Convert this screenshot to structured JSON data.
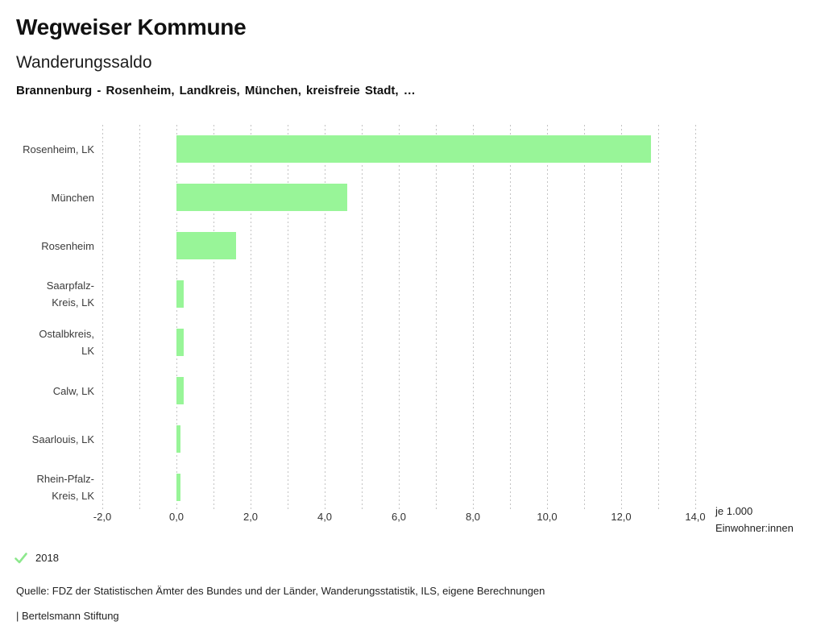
{
  "header": {
    "title": "Wegweiser Kommune",
    "chart_title": "Wanderungssaldo",
    "selection": "Brannenburg - Rosenheim, Landkreis, München, kreisfreie Stadt, …"
  },
  "chart_data": {
    "type": "bar",
    "orientation": "horizontal",
    "title": "Wanderungssaldo",
    "series_name": "2018",
    "categories": [
      "Rosenheim, LK",
      "München",
      "Rosenheim",
      "Saarpfalz-\nKreis, LK",
      "Ostalbkreis,\nLK",
      "Calw, LK",
      "Saarlouis, LK",
      "Rhein-Pfalz-\nKreis, LK"
    ],
    "values": [
      12.8,
      4.6,
      1.6,
      0.2,
      0.2,
      0.2,
      0.1,
      0.1
    ],
    "xlim": [
      -2,
      14
    ],
    "x_tick_values": [
      -2,
      0,
      2,
      4,
      6,
      8,
      10,
      12,
      14
    ],
    "x_tick_labels": [
      "-2,0",
      "0,0",
      "2,0",
      "4,0",
      "6,0",
      "8,0",
      "10,0",
      "12,0",
      "14,0"
    ],
    "gridline_step": 1,
    "grid": true,
    "unit_label": "je 1.000\nEinwohner:innen",
    "bar_color": "#98f598",
    "gridline_color": "#c3c3c3",
    "legend_position": "bottom-left"
  },
  "legend": {
    "year": "2018",
    "check_color": "#8de88d"
  },
  "footer": {
    "source": "Quelle: FDZ der Statistischen Ämter des Bundes und der Länder, Wanderungsstatistik, ILS, eigene Berechnungen",
    "brand": "| Bertelsmann Stiftung"
  }
}
